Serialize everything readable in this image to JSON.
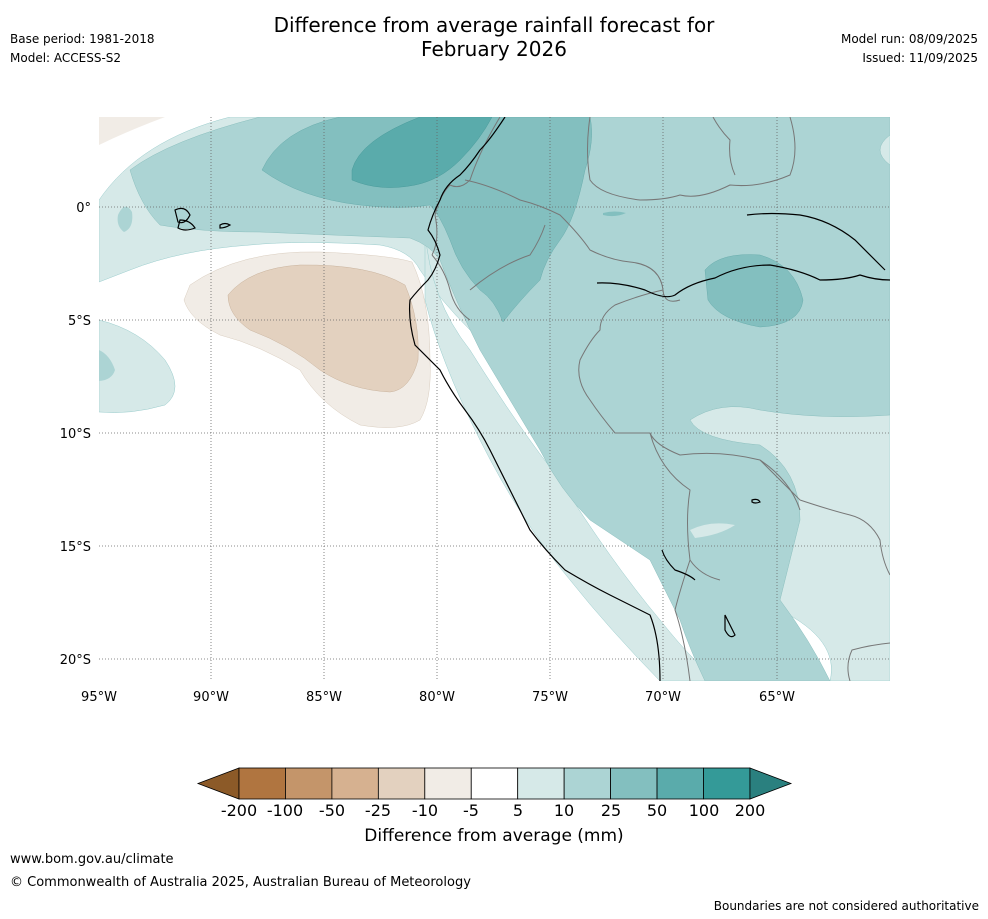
{
  "title": {
    "line1": "Difference from average rainfall forecast for",
    "line2": "February 2026"
  },
  "meta_left": {
    "base_period": "Base period: 1981-2018",
    "model": "Model: ACCESS-S2"
  },
  "meta_right": {
    "model_run": "Model run: 08/09/2025",
    "issued": "Issued: 11/09/2025"
  },
  "map": {
    "lon_labels": [
      "95°W",
      "90°W",
      "85°W",
      "80°W",
      "75°W",
      "70°W",
      "65°W"
    ],
    "lat_labels": [
      "0°",
      "5°S",
      "10°S",
      "15°S",
      "20°S"
    ],
    "gridlines": "dotted",
    "colors": {
      "land_sea_background": "#ffffff",
      "coast": "#000000",
      "borders": "#777777"
    }
  },
  "legend": {
    "title": "Difference from average (mm)",
    "tick_labels": [
      "-200",
      "-100",
      "-50",
      "-25",
      "-10",
      "-5",
      "5",
      "10",
      "25",
      "50",
      "100",
      "200"
    ],
    "colors": [
      "#8c5a28",
      "#b07540",
      "#c4956a",
      "#d6b190",
      "#e3d1bf",
      "#f1ece6",
      "#ffffff",
      "#d6e9e8",
      "#acd4d4",
      "#83bfbf",
      "#5aabab",
      "#349a98",
      "#2a807f"
    ]
  },
  "footer": {
    "url": "www.bom.gov.au/climate",
    "copyright": "© Commonwealth of Australia 2025, Australian Bureau of Meteorology",
    "note": "Boundaries are not considered authoritative"
  }
}
